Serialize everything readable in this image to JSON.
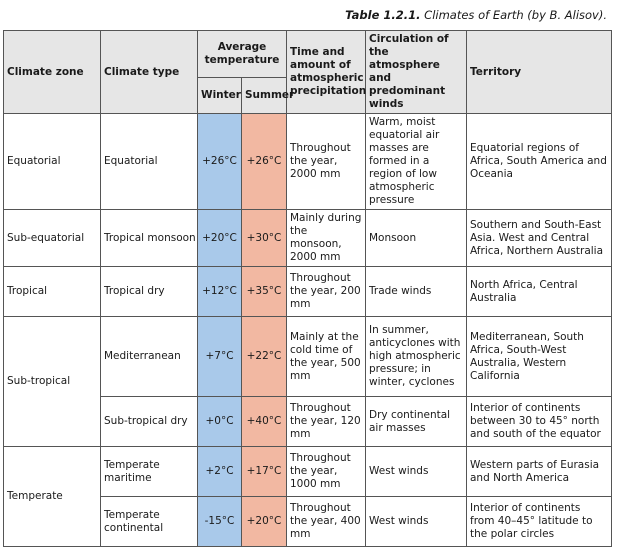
{
  "caption": {
    "number": "Table 1.2.1.",
    "title": "Climates of Earth (by B. Alisov)."
  },
  "headers": {
    "zone": "Climate zone",
    "type": "Climate type",
    "avg_temp": "Average temperature",
    "winter": "Winter",
    "summer": "Summer",
    "precip": "Time and amount of atmospheric precipitation",
    "circulation": "Circulation of the atmosphere and predominant winds",
    "territory": "Territory"
  },
  "rows": [
    {
      "zone": "Equatorial",
      "type": "Equatorial",
      "winter": "+26°C",
      "summer": "+26°C",
      "precip": "Throughout the year, 2000 mm",
      "circulation": "Warm, moist equatorial air masses are formed in a region of low atmospheric pressure",
      "territory": "Equatorial regions of Africa, South America and Oceania"
    },
    {
      "zone": "Sub-equatorial",
      "type": "Tropical monsoon",
      "winter": "+20°C",
      "summer": "+30°C",
      "precip": "Mainly during the monsoon, 2000 mm",
      "circulation": "Monsoon",
      "territory": "Southern and South-East Asia. West and Central Africa, Northern Australia"
    },
    {
      "zone": "Tropical",
      "type": "Tropical dry",
      "winter": "+12°C",
      "summer": "+35°C",
      "precip": "Throughout the year, 200 mm",
      "circulation": "Trade winds",
      "territory": "North Africa, Central Australia"
    },
    {
      "zone": "Sub-tropical",
      "type": "Mediterranean",
      "winter": "+7°C",
      "summer": "+22°C",
      "precip": "Mainly at the cold time of the year, 500 mm",
      "circulation": "In summer, anticyclones with high atmospheric pressure; in winter, cyclones",
      "territory": "Mediterranean, South Africa, South-West Australia, Western California"
    },
    {
      "type": "Sub-tropical dry",
      "winter": "+0°C",
      "summer": "+40°C",
      "precip": "Throughout the year, 120 mm",
      "circulation": "Dry continental air masses",
      "territory": "Interior of continents between 30 to 45° north and south of the equator"
    },
    {
      "zone": "Temperate",
      "type": "Temperate maritime",
      "winter": "+2°C",
      "summer": "+17°C",
      "precip": "Throughout the year, 1000 mm",
      "circulation": "West winds",
      "territory": "Western parts of Eurasia and North America"
    },
    {
      "type": "Temperate continental",
      "winter": "-15°C",
      "summer": "+20°C",
      "precip": "Throughout the year, 400 mm",
      "circulation": "West winds",
      "territory": "Interior of continents from 40–45° latitude to the polar circles"
    }
  ]
}
